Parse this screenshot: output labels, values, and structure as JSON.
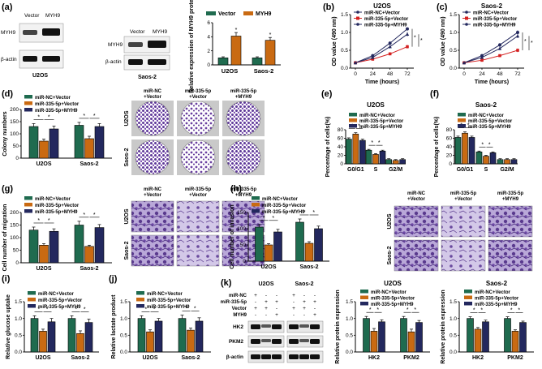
{
  "colors": {
    "green": "#1f6b4f",
    "orange": "#c96a12",
    "red": "#d42020",
    "navy": "#23285e",
    "dish": "#6a3fa0",
    "blot": "#111111"
  },
  "a": {
    "label": "(a)",
    "blot_left": {
      "cols": [
        "Vector",
        "MYH9"
      ],
      "rows": [
        "MYH9",
        "β-actin"
      ],
      "caption": "U2OS"
    },
    "blot_right": {
      "cols": [
        "Vector",
        "MYH9"
      ],
      "rows": [
        "MYH9",
        "β-actin"
      ],
      "caption": "Saos-2"
    },
    "chart": {
      "ylabel": "Relative expression of MYH9 protein",
      "yticks": [
        "0",
        "2",
        "4",
        "6"
      ],
      "ymax": 6,
      "categories": [
        "U2OS",
        "Saos-2"
      ],
      "series": [
        {
          "name": "Vector",
          "color": "#1f6b4f",
          "values": [
            1.0,
            1.0
          ],
          "errors": [
            0.15,
            0.15
          ]
        },
        {
          "name": "MYH9",
          "color": "#c96a12",
          "values": [
            4.1,
            3.5
          ],
          "errors": [
            0.5,
            0.4
          ]
        }
      ],
      "sig": [
        "*",
        "*"
      ]
    }
  },
  "bc": [
    {
      "label": "(b)",
      "title": "U2OS",
      "ylabel": "OD value (490 nm)",
      "xlabel": "Time (hours)",
      "xticks": [
        "0",
        "24",
        "48",
        "72"
      ],
      "yticks": [
        "0.0",
        "0.5",
        "1.0",
        "1.5"
      ],
      "ymax": 1.5,
      "series": [
        {
          "name": "miR-NC+Vector",
          "color": "#23285e",
          "values": [
            0.15,
            0.35,
            0.7,
            1.1
          ],
          "errors": [
            0.02,
            0.03,
            0.05,
            0.04
          ]
        },
        {
          "name": "miR-335-5p+Vector",
          "color": "#d42020",
          "values": [
            0.15,
            0.25,
            0.4,
            0.6
          ],
          "errors": [
            0.02,
            0.03,
            0.04,
            0.05
          ]
        },
        {
          "name": "miR-335-5p+MYH9",
          "color": "#23285e",
          "values": [
            0.15,
            0.3,
            0.6,
            0.95
          ],
          "errors": [
            0.02,
            0.03,
            0.05,
            0.06
          ]
        }
      ],
      "sig": [
        "*",
        "*"
      ]
    },
    {
      "label": "(c)",
      "title": "Saos-2",
      "ylabel": "OD value (490 nm)",
      "xlabel": "Time (hours)",
      "xticks": [
        "0",
        "24",
        "48",
        "72"
      ],
      "yticks": [
        "0.0",
        "0.5",
        "1.0",
        "1.5"
      ],
      "ymax": 1.5,
      "series": [
        {
          "name": "miR-NC+Vector",
          "color": "#23285e",
          "values": [
            0.15,
            0.35,
            0.65,
            1.0
          ],
          "errors": [
            0.02,
            0.03,
            0.05,
            0.06
          ]
        },
        {
          "name": "miR-335-5p+Vector",
          "color": "#d42020",
          "values": [
            0.15,
            0.22,
            0.35,
            0.5
          ],
          "errors": [
            0.02,
            0.03,
            0.04,
            0.05
          ]
        },
        {
          "name": "miR-335-5p+MYH9",
          "color": "#23285e",
          "values": [
            0.15,
            0.3,
            0.55,
            0.9
          ],
          "errors": [
            0.02,
            0.03,
            0.05,
            0.06
          ]
        }
      ],
      "sig": [
        "*",
        "*"
      ]
    }
  ],
  "groups_legend": [
    "miR-NC+Vector",
    "miR-335-5p+Vector",
    "miR-335-5p+MYH9"
  ],
  "d": {
    "label": "(d)",
    "ylabel": "Colony numbers",
    "yticks": [
      "0",
      "50",
      "100",
      "150",
      "200"
    ],
    "ymax": 200,
    "categories": [
      "U2OS",
      "Saos-2"
    ],
    "values": [
      [
        130,
        70,
        120
      ],
      [
        135,
        80,
        130
      ]
    ],
    "errors": [
      [
        12,
        8,
        12
      ],
      [
        12,
        10,
        12
      ]
    ],
    "img_cols": [
      "miR-NC\n+Vector",
      "miR-335-5p\n+Vector",
      "miR-335-5p\n+MYH9"
    ],
    "img_rows": [
      "U2OS",
      "Saos-2"
    ]
  },
  "ef": [
    {
      "label": "(e)",
      "title": "U2OS",
      "ylabel": "Percentage of cells(%)",
      "yticks": [
        "0",
        "20",
        "40",
        "60",
        "80"
      ],
      "ymax": 80,
      "categories": [
        "G0/G1",
        "S",
        "G2/M"
      ],
      "values": [
        [
          58,
          70,
          55
        ],
        [
          32,
          22,
          30
        ],
        [
          10,
          8,
          10
        ]
      ],
      "errors": [
        [
          3,
          3,
          3
        ],
        [
          2,
          2,
          2
        ],
        [
          2,
          2,
          2
        ]
      ]
    },
    {
      "label": "(f)",
      "title": "Saos-2",
      "ylabel": "Percentage of cells(%)",
      "yticks": [
        "0",
        "20",
        "40",
        "60",
        "80"
      ],
      "ymax": 80,
      "categories": [
        "G0/G1",
        "S",
        "G2/M"
      ],
      "values": [
        [
          62,
          72,
          62
        ],
        [
          28,
          18,
          26
        ],
        [
          10,
          10,
          10
        ]
      ],
      "errors": [
        [
          3,
          3,
          3
        ],
        [
          2,
          2,
          2
        ],
        [
          2,
          2,
          2
        ]
      ]
    }
  ],
  "g": {
    "label": "(g)",
    "ylabel": "Cell number of migration",
    "yticks": [
      "0",
      "50",
      "100",
      "150",
      "200"
    ],
    "ymax": 200,
    "categories": [
      "U2OS",
      "Saos-2"
    ],
    "values": [
      [
        130,
        70,
        125
      ],
      [
        150,
        65,
        140
      ]
    ],
    "errors": [
      [
        12,
        6,
        10
      ],
      [
        15,
        5,
        12
      ]
    ],
    "img_cols": [
      "miR-NC\n+Vector",
      "miR-335-5p\n+Vector",
      "miR-335-5p\n+MYH9"
    ],
    "img_rows": [
      "U2OS",
      "Saos-2"
    ]
  },
  "h": {
    "label": "(h)",
    "ylabel": "Cell number of invasion",
    "yticks": [
      "0",
      "50",
      "100",
      "150"
    ],
    "ymax": 150,
    "categories": [
      "U2OS",
      "Saos-2"
    ],
    "values": [
      [
        105,
        50,
        90
      ],
      [
        120,
        55,
        100
      ]
    ],
    "errors": [
      [
        8,
        4,
        8
      ],
      [
        10,
        5,
        8
      ]
    ],
    "img_cols": [
      "miR-NC\n+Vector",
      "miR-335-5p\n+Vector",
      "miR-335-5p\n+MYH9"
    ],
    "img_rows": [
      "U2OS",
      "Saos-2"
    ]
  },
  "i": {
    "label": "(i)",
    "ylabel": "Relative glucose uptake",
    "yticks": [
      "0.0",
      "0.5",
      "1.0",
      "1.5"
    ],
    "ymax": 1.5,
    "categories": [
      "U2OS",
      "Saos-2"
    ],
    "values": [
      [
        1.0,
        0.62,
        0.9
      ],
      [
        1.0,
        0.55,
        0.88
      ]
    ],
    "errors": [
      [
        0.08,
        0.06,
        0.1
      ],
      [
        0.08,
        0.08,
        0.1
      ]
    ]
  },
  "j": {
    "label": "(j)",
    "ylabel": "Relative lactate product",
    "yticks": [
      "0.0",
      "0.5",
      "1.0",
      "1.5"
    ],
    "ymax": 1.5,
    "categories": [
      "U2OS",
      "Saos-2"
    ],
    "values": [
      [
        1.0,
        0.6,
        0.92
      ],
      [
        1.0,
        0.65,
        0.92
      ]
    ],
    "errors": [
      [
        0.08,
        0.06,
        0.08
      ],
      [
        0.1,
        0.06,
        0.1
      ]
    ]
  },
  "k": {
    "label": "(k)",
    "blot": {
      "groups": [
        "U2OS",
        "Saos-2"
      ],
      "rowlabels": [
        "miR-NC",
        "miR-335-5p",
        "Vector",
        "MYH9"
      ],
      "signs": [
        [
          "+",
          "-",
          "-",
          "+",
          "-",
          "-"
        ],
        [
          "-",
          "+",
          "+",
          "-",
          "+",
          "+"
        ],
        [
          "+",
          "+",
          "-",
          "+",
          "+",
          "-"
        ],
        [
          "-",
          "-",
          "+",
          "-",
          "-",
          "+"
        ]
      ],
      "bands": [
        "HK2",
        "PKM2",
        "β-actin"
      ]
    },
    "charts": [
      {
        "title": "U2OS",
        "ylabel": "Relative protein expression",
        "yticks": [
          "0.0",
          "0.5",
          "1.0",
          "1.5"
        ],
        "ymax": 1.5,
        "categories": [
          "HK2",
          "PKM2"
        ],
        "values": [
          [
            1.0,
            0.62,
            0.9
          ],
          [
            1.0,
            0.6,
            0.88
          ]
        ],
        "errors": [
          [
            0.06,
            0.08,
            0.06
          ],
          [
            0.06,
            0.08,
            0.06
          ]
        ]
      },
      {
        "title": "Saos-2",
        "ylabel": "Relative protein expression",
        "yticks": [
          "0.0",
          "0.5",
          "1.0",
          "1.5"
        ],
        "ymax": 1.5,
        "categories": [
          "HK2",
          "PKM2"
        ],
        "values": [
          [
            1.0,
            0.68,
            0.9
          ],
          [
            1.0,
            0.62,
            0.88
          ]
        ],
        "errors": [
          [
            0.05,
            0.05,
            0.05
          ],
          [
            0.05,
            0.04,
            0.04
          ]
        ]
      }
    ]
  },
  "sig_mark": "*"
}
